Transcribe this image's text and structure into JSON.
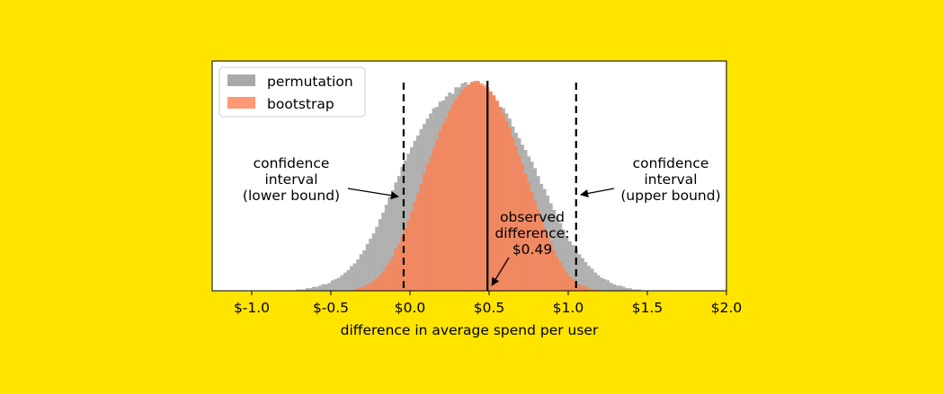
{
  "background_color": "#FFE400",
  "chart_data": {
    "type": "histogram",
    "xlabel": "difference in average spend per user",
    "ylabel": "",
    "xlim": [
      -1.25,
      2.0
    ],
    "x_ticks": [
      -1.0,
      -0.5,
      0.0,
      0.5,
      1.0,
      1.5,
      2.0
    ],
    "x_tick_labels": [
      "$-1.0",
      "$-0.5",
      "$0.0",
      "$0.5",
      "$1.0",
      "$1.5",
      "$2.0"
    ],
    "grid": false,
    "legend_position": "top-left",
    "series": [
      {
        "name": "permutation",
        "color": "#A9A9A9",
        "opacity": 0.9,
        "bin_width": 0.02,
        "bins_start": -1.0,
        "counts": [
          0,
          0,
          0,
          0,
          0,
          0,
          0,
          0,
          0,
          0,
          0,
          0,
          0,
          0,
          1,
          1,
          1,
          2,
          2,
          3,
          3,
          4,
          5,
          5,
          6,
          8,
          9,
          10,
          12,
          14,
          16,
          19,
          21,
          24,
          28,
          31,
          36,
          40,
          44,
          49,
          55,
          60,
          66,
          72,
          77,
          83,
          88,
          95,
          100,
          105,
          110,
          115,
          119,
          124,
          128,
          132,
          136,
          140,
          141,
          145,
          146,
          149,
          152,
          151,
          156,
          156,
          159,
          160,
          158,
          160,
          161,
          160,
          157,
          155,
          154,
          152,
          149,
          145,
          141,
          140,
          136,
          132,
          126,
          121,
          117,
          112,
          108,
          103,
          99,
          94,
          88,
          82,
          78,
          73,
          67,
          62,
          57,
          52,
          47,
          42,
          38,
          35,
          32,
          28,
          25,
          22,
          19,
          17,
          14,
          12,
          10,
          9,
          8,
          6,
          5,
          4,
          4,
          3,
          2,
          2,
          1,
          1,
          1,
          0,
          0,
          0,
          0,
          0
        ]
      },
      {
        "name": "bootstrap",
        "color": "#FF7F50",
        "opacity": 0.8,
        "bin_width": 0.02,
        "bins_start": -0.4,
        "counts": [
          0,
          0,
          1,
          2,
          3,
          3,
          5,
          6,
          8,
          10,
          12,
          15,
          19,
          22,
          26,
          32,
          36,
          42,
          48,
          54,
          61,
          68,
          75,
          82,
          90,
          97,
          103,
          110,
          116,
          123,
          128,
          133,
          138,
          143,
          147,
          150,
          154,
          156,
          158,
          160,
          160,
          161,
          159,
          158,
          156,
          153,
          150,
          146,
          141,
          136,
          130,
          125,
          118,
          111,
          104,
          97,
          90,
          83,
          76,
          69,
          62,
          55,
          49,
          42,
          37,
          31,
          26,
          22,
          18,
          14,
          11,
          9,
          7,
          5,
          4,
          3,
          2,
          1,
          1,
          1,
          0,
          0
        ]
      }
    ],
    "vlines": [
      {
        "name": "ci-lower",
        "x": -0.04,
        "style": "dashed"
      },
      {
        "name": "observed",
        "x": 0.49,
        "style": "solid"
      },
      {
        "name": "ci-upper",
        "x": 1.05,
        "style": "dashed"
      }
    ],
    "annotations": [
      {
        "name": "ci-lower-annotation",
        "lines": [
          "confidence",
          "interval",
          "(lower bound)"
        ]
      },
      {
        "name": "observed-annotation",
        "lines": [
          "observed",
          "difference:",
          "$0.49"
        ]
      },
      {
        "name": "ci-upper-annotation",
        "lines": [
          "confidence",
          "interval",
          "(upper bound)"
        ]
      }
    ]
  }
}
